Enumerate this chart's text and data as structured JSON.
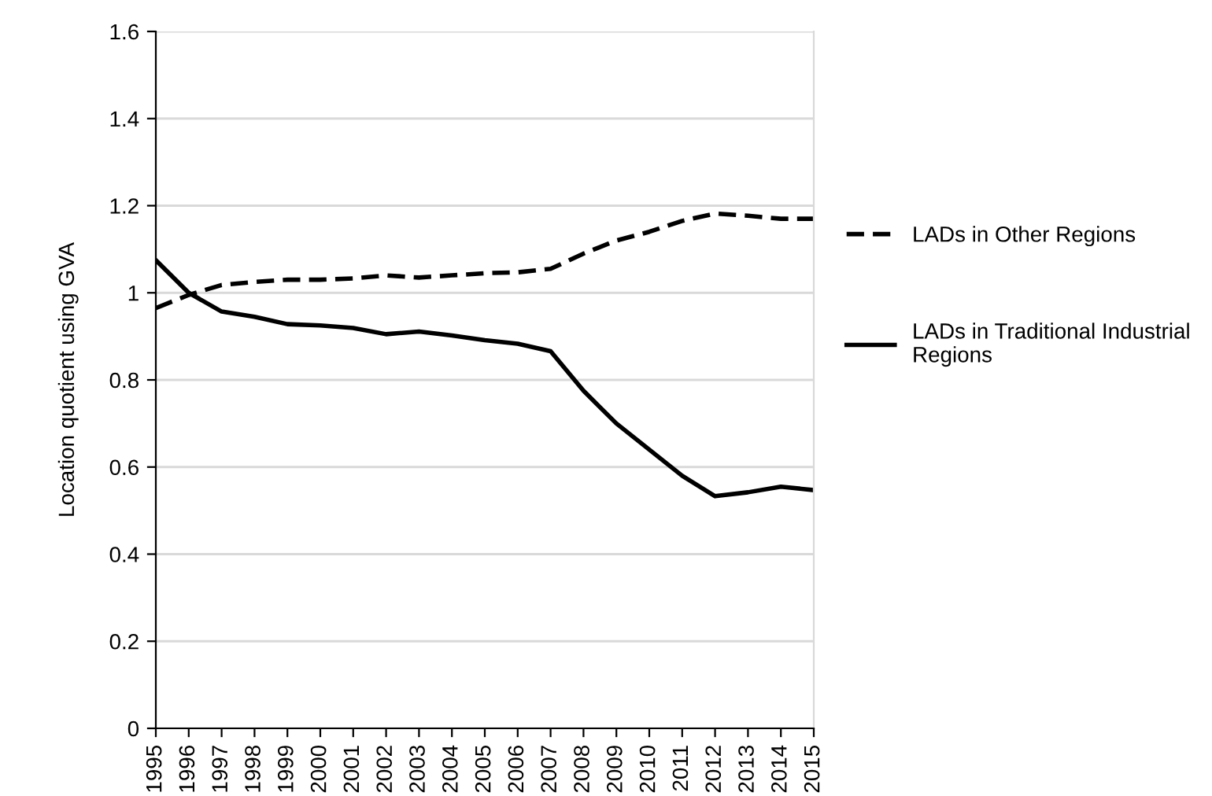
{
  "chart_data": {
    "type": "line",
    "ylabel": "Location quotient using GVA",
    "categories": [
      "1995",
      "1996",
      "1997",
      "1998",
      "1999",
      "2000",
      "2001",
      "2002",
      "2003",
      "2004",
      "2005",
      "2006",
      "2007",
      "2008",
      "2009",
      "2010",
      "2011",
      "2012",
      "2013",
      "2014",
      "2015"
    ],
    "series": [
      {
        "name": "LADs in Other Regions",
        "color": "#000000",
        "line_style": "dashed",
        "values": [
          0.965,
          0.995,
          1.018,
          1.025,
          1.03,
          1.03,
          1.033,
          1.04,
          1.035,
          1.04,
          1.045,
          1.047,
          1.055,
          1.09,
          1.12,
          1.14,
          1.165,
          1.182,
          1.177,
          1.17,
          1.17
        ]
      },
      {
        "name": "LADs in Traditional Industrial\nRegions",
        "color": "#000000",
        "line_style": "solid",
        "values": [
          1.075,
          1.0,
          0.957,
          0.945,
          0.928,
          0.925,
          0.919,
          0.905,
          0.911,
          0.902,
          0.891,
          0.883,
          0.866,
          0.775,
          0.7,
          0.64,
          0.58,
          0.533,
          0.542,
          0.555,
          0.547
        ]
      }
    ],
    "ylim": [
      0,
      1.6
    ],
    "yticks": [
      0,
      0.2,
      0.4,
      0.6,
      0.8,
      1,
      1.2,
      1.4,
      1.6
    ],
    "grid": "y",
    "legend": "right",
    "marker": "none"
  }
}
